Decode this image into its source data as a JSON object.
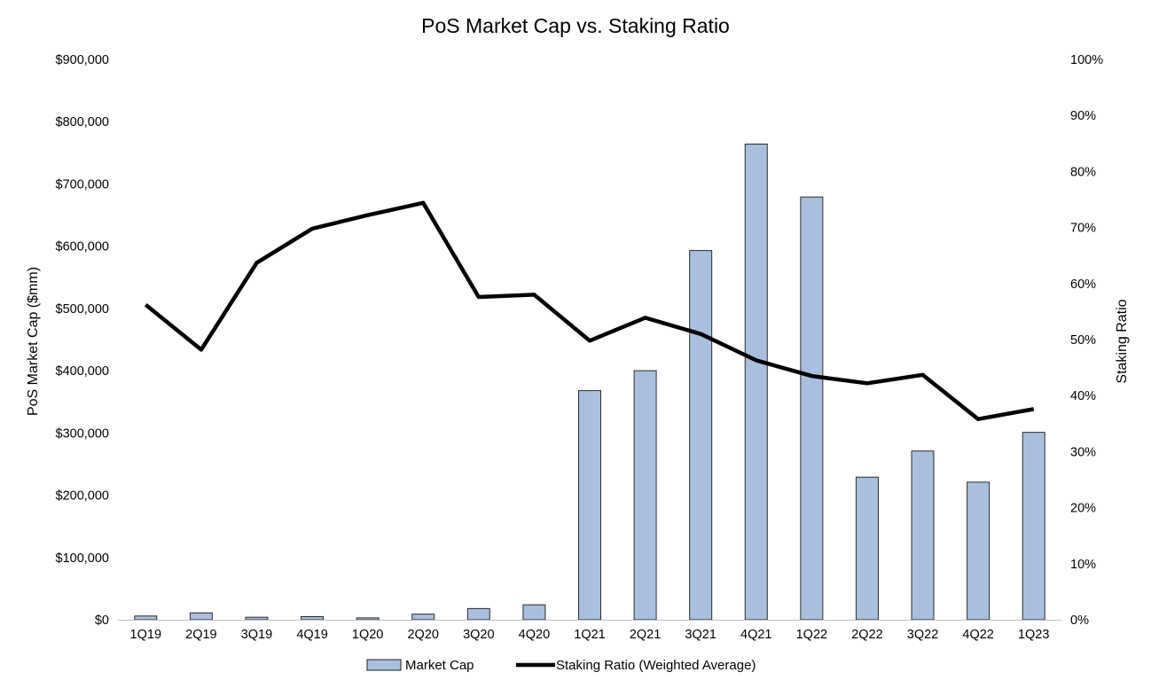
{
  "chart_data": {
    "type": "bar",
    "title": "PoS Market Cap vs. Staking Ratio",
    "xlabel": "",
    "ylabel": "PoS Market Cap ($mm)",
    "y2label": "Staking Ratio",
    "categories": [
      "1Q19",
      "2Q19",
      "3Q19",
      "4Q19",
      "1Q20",
      "2Q20",
      "3Q20",
      "4Q20",
      "1Q21",
      "2Q21",
      "3Q21",
      "4Q21",
      "1Q22",
      "2Q22",
      "3Q22",
      "4Q22",
      "1Q23"
    ],
    "series": [
      {
        "name": "Market Cap",
        "type": "bar",
        "axis": "left",
        "color": "#a9bfdd",
        "values": [
          6000,
          11000,
          4000,
          5000,
          3000,
          9000,
          18000,
          24000,
          368000,
          400000,
          593000,
          764000,
          679000,
          229000,
          271000,
          221000,
          301000
        ]
      },
      {
        "name": "Staking Ratio (Weighted Average)",
        "type": "line",
        "axis": "right",
        "color": "#000000",
        "values": [
          56.2,
          48.2,
          63.7,
          69.8,
          72.2,
          74.4,
          57.6,
          58.0,
          49.8,
          53.9,
          51.0,
          46.3,
          43.5,
          42.2,
          43.7,
          35.8,
          37.6
        ]
      }
    ],
    "ylim": [
      0,
      900000
    ],
    "y2lim": [
      0,
      100
    ],
    "yticks": [
      "$0",
      "$100,000",
      "$200,000",
      "$300,000",
      "$400,000",
      "$500,000",
      "$600,000",
      "$700,000",
      "$800,000",
      "$900,000"
    ],
    "y2ticks": [
      "0%",
      "10%",
      "20%",
      "30%",
      "40%",
      "50%",
      "60%",
      "70%",
      "80%",
      "90%",
      "100%"
    ],
    "grid": false,
    "legend_position": "bottom"
  }
}
